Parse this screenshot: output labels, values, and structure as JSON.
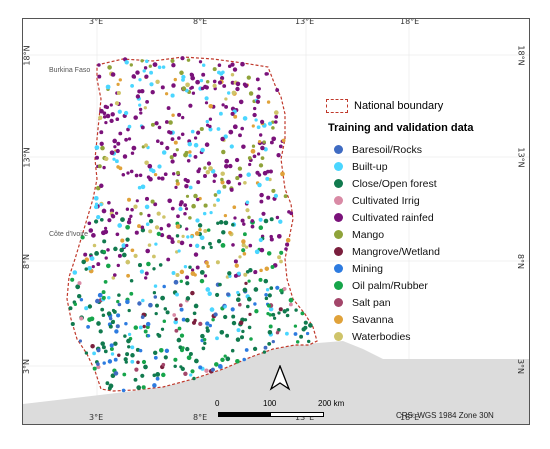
{
  "map": {
    "longitude_ticks": [
      "3°E",
      "8°E",
      "13°E",
      "18°E"
    ],
    "latitude_ticks": [
      "18°N",
      "13°N",
      "8°N",
      "3°N"
    ],
    "places": {
      "burkina": "Burkina Faso",
      "cote": "Côte d'Ivoire"
    },
    "colors": {
      "boundary": "#c0392b",
      "land_fill": "#ffffff",
      "sea": "#dcdcdc"
    }
  },
  "legend": {
    "boundary_label": "National boundary",
    "title": "Training and validation data",
    "items": [
      {
        "label": "Baresoil/Rocks",
        "color": "#3f6bc2"
      },
      {
        "label": "Built-up",
        "color": "#4ad6ff"
      },
      {
        "label": "Close/Open forest",
        "color": "#117a4e"
      },
      {
        "label": "Cultivated Irrig",
        "color": "#d98aa5"
      },
      {
        "label": "Cultivated rainfed",
        "color": "#7a127a"
      },
      {
        "label": "Mango",
        "color": "#8fa33a"
      },
      {
        "label": "Mangrove/Wetland",
        "color": "#7a1f3d"
      },
      {
        "label": "Mining",
        "color": "#2d7be0"
      },
      {
        "label": "Oil palm/Rubber",
        "color": "#16a54a"
      },
      {
        "label": "Salt pan",
        "color": "#a3466a"
      },
      {
        "label": "Savanna",
        "color": "#e0a23a"
      },
      {
        "label": "Waterbodies",
        "color": "#cfc46a"
      }
    ]
  },
  "scale": {
    "labels": [
      "0",
      "100",
      "200 km"
    ]
  },
  "north_arrow": "north-arrow-icon",
  "crs": "CRS: WGS 1984 Zone 30N"
}
